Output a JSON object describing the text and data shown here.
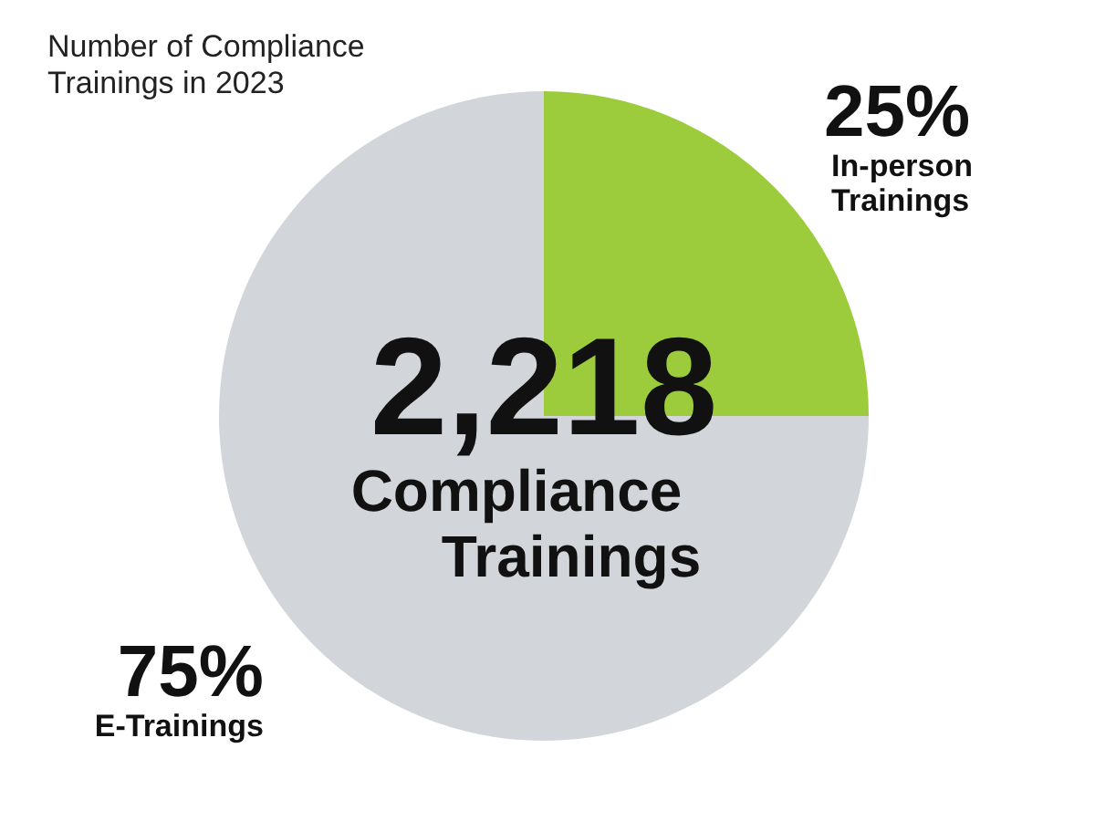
{
  "chart_data": {
    "type": "pie",
    "title": "Number of Compliance\nTrainings in 2023",
    "categories": [
      "In-person Trainings",
      "E-Trainings"
    ],
    "values": [
      25,
      75
    ],
    "value_labels": [
      "25%",
      "75%"
    ],
    "colors": [
      "#9ccc3c",
      "#d2d5da"
    ],
    "annotations": [
      "2,218",
      "Compliance Trainings"
    ],
    "legend": false
  }
}
